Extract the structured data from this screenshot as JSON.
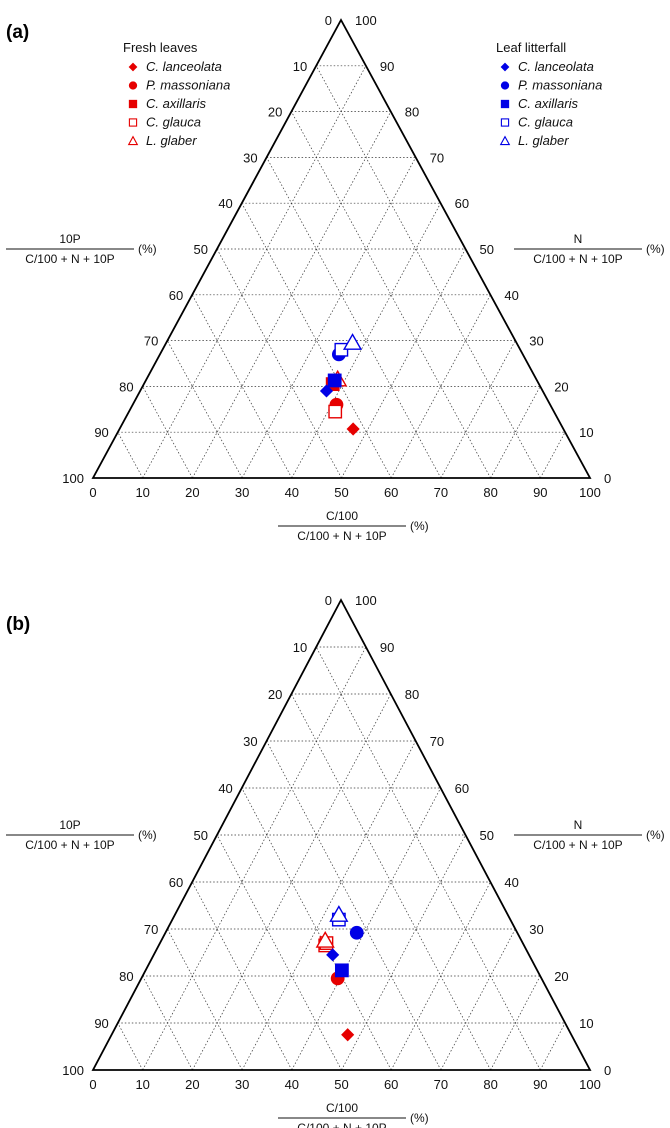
{
  "chart_data": [
    {
      "type": "scatter",
      "subtype": "ternary",
      "panel": "(a)",
      "axes": {
        "a": {
          "label_num": "10P",
          "label_den": "C/100 + N + 10P",
          "label_unit": "(%)"
        },
        "b": {
          "label_num": "N",
          "label_den": "C/100 + N + 10P",
          "label_unit": "(%)"
        },
        "c": {
          "label_num": "C/100",
          "label_den": "C/100 + N + 10P",
          "label_unit": "(%)"
        },
        "ticks": [
          "0",
          "10",
          "20",
          "30",
          "40",
          "50",
          "60",
          "70",
          "80",
          "90",
          "100"
        ],
        "range": [
          0,
          100
        ],
        "grid": true
      },
      "legend_titles": {
        "red": "Fresh leaves",
        "blue": "Leaf litterfall"
      },
      "series": [
        {
          "name": "Fresh leaves",
          "color": "#e60000",
          "points": [
            {
              "label": "C. lanceolata",
              "marker": "diamond",
              "filled": true,
              "c": 42.3,
              "p": 47,
              "n": 10.7
            },
            {
              "label": "P. massoniana",
              "marker": "circle",
              "filled": true,
              "c": 43,
              "p": 41,
              "n": 16
            },
            {
              "label": "C. axillaris",
              "marker": "square",
              "filled": true,
              "c": 41.5,
              "p": 38,
              "n": 20.5
            },
            {
              "label": "C. glauca",
              "marker": "square",
              "filled": false,
              "c": 44,
              "p": 41.5,
              "n": 14.5
            },
            {
              "label": "L. glaber",
              "marker": "triangle",
              "filled": false,
              "c": 40,
              "p": 38.5,
              "n": 21.5
            }
          ]
        },
        {
          "name": "Leaf litterfall",
          "color": "#0000e6",
          "points": [
            {
              "label": "C. lanceolata",
              "marker": "diamond",
              "filled": true,
              "c": 43.5,
              "p": 37.5,
              "n": 19
            },
            {
              "label": "P. massoniana",
              "marker": "circle",
              "filled": true,
              "c": 37,
              "p": 36,
              "n": 27
            },
            {
              "label": "C. axillaris",
              "marker": "square",
              "filled": true,
              "c": 40.7,
              "p": 38,
              "n": 21.3
            },
            {
              "label": "C. glauca",
              "marker": "square",
              "filled": false,
              "c": 36,
              "p": 36,
              "n": 28
            },
            {
              "label": "L. glaber",
              "marker": "triangle",
              "filled": false,
              "c": 33,
              "p": 37.5,
              "n": 29.5
            }
          ]
        }
      ]
    },
    {
      "type": "scatter",
      "subtype": "ternary",
      "panel": "(b)",
      "axes": {
        "a": {
          "label_num": "10P",
          "label_den": "C/100 + N + 10P",
          "label_unit": "(%)"
        },
        "b": {
          "label_num": "N",
          "label_den": "C/100 + N + 10P",
          "label_unit": "(%)"
        },
        "c": {
          "label_num": "C/100",
          "label_den": "C/100 + N + 10P",
          "label_unit": "(%)"
        },
        "ticks": [
          "0",
          "10",
          "20",
          "30",
          "40",
          "50",
          "60",
          "70",
          "80",
          "90",
          "100"
        ],
        "range": [
          0,
          100
        ],
        "grid": true
      },
      "series": [
        {
          "name": "Fresh leaves",
          "color": "#e60000",
          "points": [
            {
              "label": "C. lanceolata",
              "marker": "diamond",
              "filled": true,
              "c": 45,
              "p": 47.5,
              "n": 7.5
            },
            {
              "label": "P. massoniana",
              "marker": "circle",
              "filled": true,
              "c": 41,
              "p": 39.5,
              "n": 19.5
            },
            {
              "label": "C. axillaris",
              "marker": "square",
              "filled": false,
              "c": 40,
              "p": 33.5,
              "n": 26.5
            },
            {
              "label": "C. glauca",
              "marker": "square",
              "filled": false,
              "c": 39.5,
              "p": 33.5,
              "n": 27
            },
            {
              "label": "L. glaber",
              "marker": "triangle",
              "filled": false,
              "c": 39.5,
              "p": 33,
              "n": 27.5
            }
          ]
        },
        {
          "name": "Leaf litterfall",
          "color": "#0000e6",
          "points": [
            {
              "label": "C. lanceolata",
              "marker": "diamond",
              "filled": true,
              "c": 39.5,
              "p": 36,
              "n": 24.5
            },
            {
              "label": "P. massoniana",
              "marker": "circle",
              "filled": true,
              "c": 32.3,
              "p": 38.5,
              "n": 29.2
            },
            {
              "label": "C. axillaris",
              "marker": "square",
              "filled": true,
              "c": 39.3,
              "p": 39.5,
              "n": 21.2
            },
            {
              "label": "C. glauca",
              "marker": "square",
              "filled": false,
              "c": 34.5,
              "p": 33.5,
              "n": 32
            },
            {
              "label": "L. glaber",
              "marker": "triangle",
              "filled": false,
              "c": 34,
              "p": 33,
              "n": 33
            }
          ]
        }
      ]
    }
  ]
}
